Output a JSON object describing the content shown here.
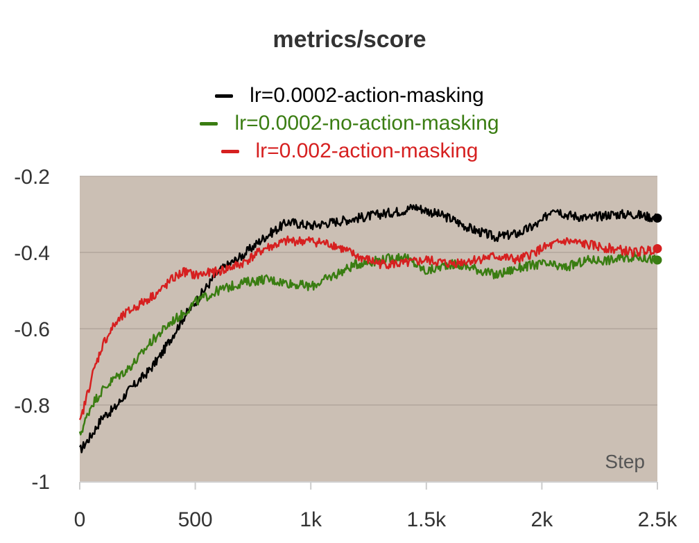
{
  "chart_data": {
    "type": "line",
    "title": "metrics/score",
    "xlabel": "Step",
    "ylabel": "",
    "xlim": [
      0,
      2500
    ],
    "ylim": [
      -1,
      -0.2
    ],
    "x_ticks": [
      0,
      500,
      1000,
      1500,
      2000,
      2500
    ],
    "x_tick_labels": [
      "0",
      "500",
      "1k",
      "1.5k",
      "2k",
      "2.5k"
    ],
    "y_ticks": [
      -0.2,
      -0.4,
      -0.6,
      -0.8,
      -1
    ],
    "y_tick_labels": [
      "-0.2",
      "-0.4",
      "-0.6",
      "-0.8",
      "-1"
    ],
    "grid": true,
    "legend_position": "top-center",
    "band_color": "#b9a99b",
    "series": [
      {
        "name": "lr=0.0002-action-masking",
        "color": "#000000",
        "x": [
          0,
          50,
          100,
          150,
          200,
          250,
          300,
          350,
          400,
          450,
          500,
          550,
          600,
          700,
          800,
          900,
          1000,
          1100,
          1200,
          1300,
          1400,
          1450,
          1500,
          1600,
          1700,
          1800,
          1900,
          2000,
          2050,
          2100,
          2200,
          2300,
          2400,
          2500
        ],
        "y": [
          -0.92,
          -0.88,
          -0.83,
          -0.81,
          -0.77,
          -0.74,
          -0.71,
          -0.67,
          -0.62,
          -0.57,
          -0.53,
          -0.49,
          -0.45,
          -0.41,
          -0.36,
          -0.32,
          -0.33,
          -0.32,
          -0.31,
          -0.3,
          -0.29,
          -0.28,
          -0.29,
          -0.31,
          -0.34,
          -0.36,
          -0.35,
          -0.32,
          -0.28,
          -0.3,
          -0.31,
          -0.3,
          -0.3,
          -0.31
        ]
      },
      {
        "name": "lr=0.0002-no-action-masking",
        "color": "#3a7d12",
        "x": [
          0,
          50,
          100,
          150,
          200,
          250,
          300,
          350,
          400,
          450,
          500,
          600,
          700,
          800,
          900,
          1000,
          1100,
          1200,
          1300,
          1400,
          1500,
          1600,
          1700,
          1800,
          1900,
          2000,
          2100,
          2200,
          2300,
          2400,
          2500
        ],
        "y": [
          -0.88,
          -0.8,
          -0.76,
          -0.73,
          -0.71,
          -0.68,
          -0.64,
          -0.61,
          -0.58,
          -0.56,
          -0.53,
          -0.5,
          -0.48,
          -0.47,
          -0.48,
          -0.49,
          -0.46,
          -0.43,
          -0.42,
          -0.41,
          -0.45,
          -0.43,
          -0.44,
          -0.46,
          -0.44,
          -0.43,
          -0.44,
          -0.42,
          -0.42,
          -0.41,
          -0.42
        ]
      },
      {
        "name": "lr=0.002-action-masking",
        "color": "#d62020",
        "x": [
          0,
          50,
          100,
          150,
          200,
          250,
          300,
          350,
          400,
          450,
          500,
          600,
          700,
          800,
          900,
          1000,
          1100,
          1200,
          1300,
          1400,
          1500,
          1600,
          1700,
          1800,
          1900,
          2000,
          2100,
          2200,
          2300,
          2400,
          2500
        ],
        "y": [
          -0.85,
          -0.73,
          -0.64,
          -0.59,
          -0.56,
          -0.54,
          -0.52,
          -0.5,
          -0.47,
          -0.45,
          -0.46,
          -0.45,
          -0.43,
          -0.39,
          -0.37,
          -0.37,
          -0.38,
          -0.41,
          -0.43,
          -0.43,
          -0.42,
          -0.43,
          -0.42,
          -0.41,
          -0.42,
          -0.39,
          -0.37,
          -0.38,
          -0.39,
          -0.4,
          -0.39
        ]
      }
    ]
  }
}
